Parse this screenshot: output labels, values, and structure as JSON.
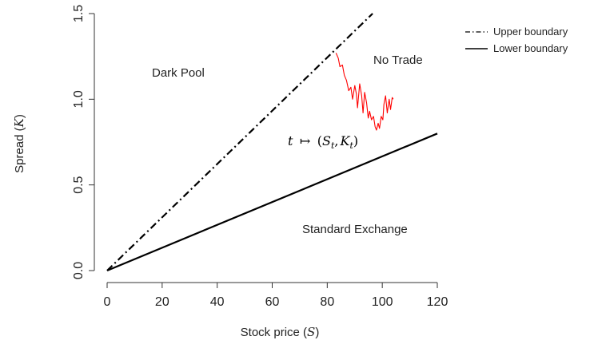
{
  "chart_data": {
    "type": "line",
    "xlabel": "Stock price",
    "xlabel_symbol": "S",
    "ylabel": "Spread",
    "ylabel_symbol": "K",
    "xlim": [
      0,
      120
    ],
    "ylim": [
      0,
      1.5
    ],
    "xticks": [
      "0",
      "20",
      "40",
      "60",
      "80",
      "100",
      "120"
    ],
    "yticks": [
      "0.0",
      "0.5",
      "1.0",
      "1.5"
    ],
    "grid": false,
    "legend_position": "top-right",
    "series": [
      {
        "name": "Upper boundary",
        "style": "dashdot",
        "color": "#000000",
        "x": [
          0,
          96.5
        ],
        "y": [
          0,
          1.5
        ]
      },
      {
        "name": "Lower boundary",
        "style": "solid",
        "color": "#000000",
        "x": [
          0,
          120
        ],
        "y": [
          0,
          0.8
        ]
      },
      {
        "style": "solid",
        "color": "#ff0000",
        "x": [
          83.2,
          84.0,
          84.6,
          85.5,
          86.2,
          87.0,
          87.8,
          88.6,
          89.2,
          90.0,
          90.6,
          91.0,
          91.8,
          92.5,
          93.0,
          93.6,
          94.3,
          94.9,
          95.4,
          96.1,
          96.8,
          97.4,
          97.9,
          98.5,
          99.0,
          99.6,
          100.2,
          100.6,
          101.2,
          101.8,
          102.5,
          103.0,
          103.6,
          104.0
        ],
        "y": [
          1.27,
          1.24,
          1.19,
          1.2,
          1.14,
          1.11,
          1.05,
          1.07,
          1.0,
          1.08,
          1.03,
          0.95,
          1.09,
          1.02,
          0.92,
          1.04,
          0.98,
          0.89,
          0.93,
          0.88,
          0.9,
          0.84,
          0.82,
          0.86,
          0.83,
          0.9,
          0.88,
          0.97,
          1.02,
          0.92,
          1.0,
          0.94,
          1.01,
          1.0
        ]
      }
    ],
    "annotations": {
      "dark_pool": "Dark Pool",
      "no_trade": "No Trade",
      "standard_exchange": "Standard Exchange",
      "path_lhs": "t",
      "path_arrow": "↦",
      "path_open": "(",
      "path_s": "S",
      "path_comma": ",",
      "path_k": "K",
      "path_sub": "t",
      "path_close": ")"
    }
  }
}
